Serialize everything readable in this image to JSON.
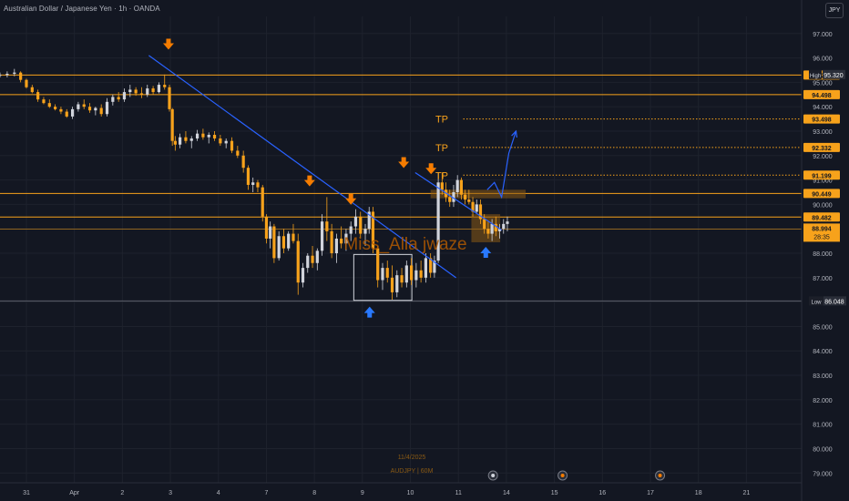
{
  "header": {
    "symbol_title": "Australian Dollar / Japanese Yen · 1h · OANDA",
    "currency_button": "JPY"
  },
  "colors": {
    "background": "#131722",
    "grid": "#1e222d",
    "candle_up": "#d1d4dc",
    "candle_down": "#f7a21b",
    "level_line": "#f7a21b",
    "trendline": "#2962ff",
    "marker_up": "#2979ff",
    "marker_down": "#f57c00",
    "tp_text": "#f7a21b",
    "zone_fill": "#8a5a14",
    "low_high_label_bg": "#1c1f29",
    "watermark": "#b35a00"
  },
  "chart_data": {
    "type": "candlestick",
    "xlabel": "",
    "ylabel": "",
    "ylim": [
      78.6,
      97.7
    ],
    "y_ticks": [
      "97.000",
      "96.000",
      "95.000",
      "94.000",
      "93.000",
      "92.000",
      "91.000",
      "90.000",
      "89.000",
      "88.000",
      "87.000",
      "86.000",
      "85.000",
      "84.000",
      "83.000",
      "82.000",
      "81.000",
      "80.000",
      "79.000"
    ],
    "x_ticks": [
      "31",
      "Apr",
      "2",
      "3",
      "4",
      "7",
      "8",
      "9",
      "10",
      "11",
      "14",
      "15",
      "16",
      "17",
      "18",
      "21"
    ],
    "x_tick_positions": [
      -1,
      0,
      1,
      2,
      3,
      4,
      5,
      6,
      7,
      8,
      9,
      10,
      11,
      12,
      13,
      14
    ],
    "xlim": [
      -1.55,
      15.15
    ],
    "grid": true,
    "labels": {
      "high": "High",
      "high_value": "95.320",
      "low": "Low",
      "low_value": "86.048",
      "current_price": "88.994",
      "countdown": "28:35"
    },
    "horizontal_levels": [
      {
        "value": 95.298,
        "label": "95.298",
        "style": "solid"
      },
      {
        "value": 94.498,
        "label": "94.498",
        "style": "solid"
      },
      {
        "value": 93.498,
        "label": "93.498",
        "style": "dotted"
      },
      {
        "value": 92.332,
        "label": "92.332",
        "style": "dotted"
      },
      {
        "value": 91.199,
        "label": "91.199",
        "style": "dotted"
      },
      {
        "value": 90.449,
        "label": "90.449",
        "style": "solid"
      },
      {
        "value": 89.482,
        "label": "89.482",
        "style": "solid"
      }
    ],
    "tp_labels": [
      {
        "text": "TP",
        "value": 93.498,
        "x": 7.9
      },
      {
        "text": "TP",
        "value": 92.332,
        "x": 7.9
      },
      {
        "text": "TP",
        "value": 91.199,
        "x": 7.9
      }
    ],
    "trendlines": [
      {
        "x1": 1.55,
        "y1": 96.1,
        "x2": 7.95,
        "y2": 87.0
      },
      {
        "x1": 7.1,
        "y1": 91.3,
        "x2": 8.9,
        "y2": 88.95
      }
    ],
    "projection_arrow": [
      [
        8.6,
        90.6
      ],
      [
        8.75,
        90.9
      ],
      [
        8.9,
        90.3
      ],
      [
        9.05,
        92.1
      ],
      [
        9.2,
        93.0
      ]
    ],
    "zones": [
      {
        "type": "supply",
        "x1": 7.42,
        "x2": 9.4,
        "y1": 90.6,
        "y2": 90.25
      },
      {
        "type": "demand",
        "x1": 8.27,
        "x2": 8.87,
        "y1": 89.6,
        "y2": 88.45
      }
    ],
    "box": {
      "x1": 5.82,
      "x2": 7.03,
      "y1": 87.95,
      "y2": 86.07
    },
    "arrows_down": [
      {
        "x": 1.96,
        "y": 96.45
      },
      {
        "x": 4.9,
        "y": 90.85
      },
      {
        "x": 5.76,
        "y": 90.1
      },
      {
        "x": 6.86,
        "y": 91.6
      },
      {
        "x": 7.43,
        "y": 91.35
      }
    ],
    "arrows_up": [
      {
        "x": 6.15,
        "y": 85.7
      },
      {
        "x": 8.57,
        "y": 88.15
      }
    ],
    "watermark": "Miss_Alla jwaze",
    "footer_date": "11/4/2025",
    "footer_symbol": "AUDJPY | 60M",
    "event_icons": [
      {
        "x": 8.72
      },
      {
        "x": 10.17
      },
      {
        "x": 12.2
      }
    ],
    "ohlc": [
      [
        -1.55,
        95.3,
        95.4,
        95.2,
        95.3
      ],
      [
        -1.4,
        95.3,
        95.45,
        95.2,
        95.35
      ],
      [
        -1.25,
        95.35,
        95.55,
        95.25,
        95.4
      ],
      [
        -1.12,
        95.4,
        95.45,
        95.0,
        95.1
      ],
      [
        -1.0,
        95.1,
        95.15,
        94.75,
        94.8
      ],
      [
        -0.88,
        94.8,
        94.9,
        94.55,
        94.6
      ],
      [
        -0.76,
        94.6,
        94.7,
        94.2,
        94.3
      ],
      [
        -0.64,
        94.3,
        94.4,
        94.1,
        94.15
      ],
      [
        -0.52,
        94.15,
        94.3,
        93.95,
        94.0
      ],
      [
        -0.4,
        94.0,
        94.1,
        93.85,
        93.9
      ],
      [
        -0.28,
        93.9,
        94.0,
        93.7,
        93.8
      ],
      [
        -0.16,
        93.8,
        93.9,
        93.55,
        93.6
      ],
      [
        -0.04,
        93.6,
        94.0,
        93.5,
        93.9
      ],
      [
        0.08,
        93.9,
        94.2,
        93.8,
        94.1
      ],
      [
        0.2,
        94.1,
        94.3,
        93.9,
        94.0
      ],
      [
        0.32,
        94.0,
        94.15,
        93.75,
        93.85
      ],
      [
        0.44,
        93.85,
        94.0,
        93.65,
        93.95
      ],
      [
        0.56,
        93.95,
        94.1,
        93.6,
        93.7
      ],
      [
        0.68,
        93.7,
        94.35,
        93.6,
        94.2
      ],
      [
        0.8,
        94.2,
        94.5,
        94.05,
        94.4
      ],
      [
        0.92,
        94.4,
        94.6,
        94.2,
        94.3
      ],
      [
        1.04,
        94.3,
        94.75,
        94.2,
        94.6
      ],
      [
        1.16,
        94.6,
        94.9,
        94.4,
        94.7
      ],
      [
        1.28,
        94.7,
        94.8,
        94.45,
        94.55
      ],
      [
        1.4,
        94.55,
        94.8,
        94.35,
        94.5
      ],
      [
        1.52,
        94.5,
        94.9,
        94.4,
        94.75
      ],
      [
        1.64,
        94.75,
        94.85,
        94.5,
        94.6
      ],
      [
        1.76,
        94.6,
        95.0,
        94.55,
        94.9
      ],
      [
        1.88,
        94.9,
        95.32,
        94.7,
        94.8
      ],
      [
        1.98,
        94.8,
        94.9,
        93.8,
        93.9
      ],
      [
        2.04,
        93.9,
        93.95,
        92.4,
        92.6
      ],
      [
        2.1,
        92.6,
        92.8,
        92.2,
        92.45
      ],
      [
        2.2,
        92.45,
        92.9,
        92.3,
        92.75
      ],
      [
        2.32,
        92.75,
        93.0,
        92.5,
        92.6
      ],
      [
        2.44,
        92.6,
        92.8,
        92.3,
        92.7
      ],
      [
        2.56,
        92.7,
        93.05,
        92.6,
        92.9
      ],
      [
        2.68,
        92.9,
        93.1,
        92.65,
        92.75
      ],
      [
        2.8,
        92.75,
        92.95,
        92.5,
        92.85
      ],
      [
        2.92,
        92.85,
        93.0,
        92.6,
        92.7
      ],
      [
        3.04,
        92.7,
        92.85,
        92.4,
        92.5
      ],
      [
        3.16,
        92.5,
        92.7,
        92.3,
        92.6
      ],
      [
        3.28,
        92.6,
        92.75,
        92.1,
        92.2
      ],
      [
        3.4,
        92.2,
        92.4,
        91.9,
        92.0
      ],
      [
        3.52,
        92.0,
        92.2,
        91.3,
        91.5
      ],
      [
        3.62,
        91.5,
        91.6,
        90.6,
        90.8
      ],
      [
        3.72,
        90.8,
        91.1,
        90.5,
        90.9
      ],
      [
        3.82,
        90.9,
        91.0,
        90.5,
        90.7
      ],
      [
        3.92,
        90.7,
        90.8,
        89.3,
        89.5
      ],
      [
        4.0,
        89.5,
        89.6,
        88.4,
        88.6
      ],
      [
        4.08,
        88.6,
        89.3,
        88.2,
        89.1
      ],
      [
        4.16,
        89.1,
        89.2,
        87.6,
        87.8
      ],
      [
        4.26,
        87.8,
        88.9,
        87.7,
        88.7
      ],
      [
        4.36,
        88.7,
        89.0,
        88.0,
        88.2
      ],
      [
        4.46,
        88.2,
        88.9,
        88.1,
        88.8
      ],
      [
        4.56,
        88.8,
        89.2,
        88.4,
        88.5
      ],
      [
        4.66,
        88.5,
        88.8,
        86.3,
        86.8
      ],
      [
        4.76,
        86.8,
        87.6,
        86.6,
        87.4
      ],
      [
        4.86,
        87.4,
        88.0,
        87.2,
        87.9
      ],
      [
        4.96,
        87.9,
        88.3,
        87.4,
        87.6
      ],
      [
        5.06,
        87.6,
        88.2,
        87.3,
        88.1
      ],
      [
        5.16,
        88.1,
        89.6,
        87.9,
        89.3
      ],
      [
        5.26,
        89.3,
        90.3,
        88.5,
        88.9
      ],
      [
        5.36,
        88.9,
        89.2,
        87.8,
        88.0
      ],
      [
        5.46,
        88.0,
        88.8,
        87.6,
        88.6
      ],
      [
        5.56,
        88.6,
        89.1,
        88.2,
        88.4
      ],
      [
        5.66,
        88.4,
        89.0,
        88.1,
        88.8
      ],
      [
        5.76,
        88.8,
        89.3,
        88.5,
        89.1
      ],
      [
        5.86,
        89.1,
        89.8,
        88.8,
        89.5
      ],
      [
        5.96,
        89.5,
        89.7,
        88.6,
        88.8
      ],
      [
        6.06,
        88.8,
        89.2,
        88.3,
        89.0
      ],
      [
        6.14,
        89.0,
        89.9,
        88.8,
        89.7
      ],
      [
        6.22,
        89.7,
        89.9,
        88.0,
        88.2
      ],
      [
        6.32,
        88.2,
        88.3,
        86.6,
        86.9
      ],
      [
        6.42,
        86.9,
        87.6,
        86.5,
        87.4
      ],
      [
        6.52,
        87.4,
        87.7,
        86.8,
        87.0
      ],
      [
        6.62,
        87.0,
        87.5,
        86.1,
        86.4
      ],
      [
        6.72,
        86.4,
        87.3,
        86.2,
        87.1
      ],
      [
        6.82,
        87.1,
        87.4,
        86.6,
        86.8
      ],
      [
        6.92,
        86.8,
        87.7,
        86.6,
        87.5
      ],
      [
        7.02,
        87.5,
        87.8,
        86.7,
        86.9
      ],
      [
        7.12,
        86.9,
        87.6,
        86.6,
        87.3
      ],
      [
        7.22,
        87.3,
        87.7,
        86.8,
        87.0
      ],
      [
        7.32,
        87.0,
        88.0,
        86.8,
        87.8
      ],
      [
        7.42,
        87.8,
        88.0,
        87.0,
        87.2
      ],
      [
        7.5,
        87.2,
        87.9,
        87.0,
        87.7
      ],
      [
        7.58,
        87.7,
        91.3,
        87.6,
        90.9
      ],
      [
        7.66,
        90.9,
        91.3,
        90.4,
        90.6
      ],
      [
        7.74,
        90.6,
        90.9,
        90.1,
        90.3
      ],
      [
        7.82,
        90.3,
        90.6,
        89.9,
        90.1
      ],
      [
        7.9,
        90.1,
        90.8,
        89.9,
        90.5
      ],
      [
        7.98,
        90.5,
        91.2,
        90.3,
        91.0
      ],
      [
        8.06,
        91.0,
        91.1,
        90.2,
        90.4
      ],
      [
        8.14,
        90.4,
        90.6,
        90.0,
        90.2
      ],
      [
        8.22,
        90.2,
        90.6,
        90.0,
        90.1
      ],
      [
        8.3,
        90.1,
        90.3,
        89.5,
        89.7
      ],
      [
        8.38,
        89.7,
        90.2,
        89.6,
        90.0
      ],
      [
        8.46,
        90.0,
        90.2,
        89.2,
        89.4
      ],
      [
        8.54,
        89.4,
        89.6,
        88.8,
        89.0
      ],
      [
        8.62,
        89.0,
        89.3,
        88.6,
        88.8
      ],
      [
        8.7,
        88.8,
        89.4,
        88.5,
        89.2
      ],
      [
        8.78,
        89.2,
        89.5,
        88.7,
        88.9
      ],
      [
        8.86,
        88.9,
        89.2,
        88.6,
        89.0
      ],
      [
        8.94,
        89.0,
        89.4,
        88.8,
        89.2
      ],
      [
        9.02,
        89.2,
        89.5,
        88.9,
        89.3
      ]
    ]
  }
}
